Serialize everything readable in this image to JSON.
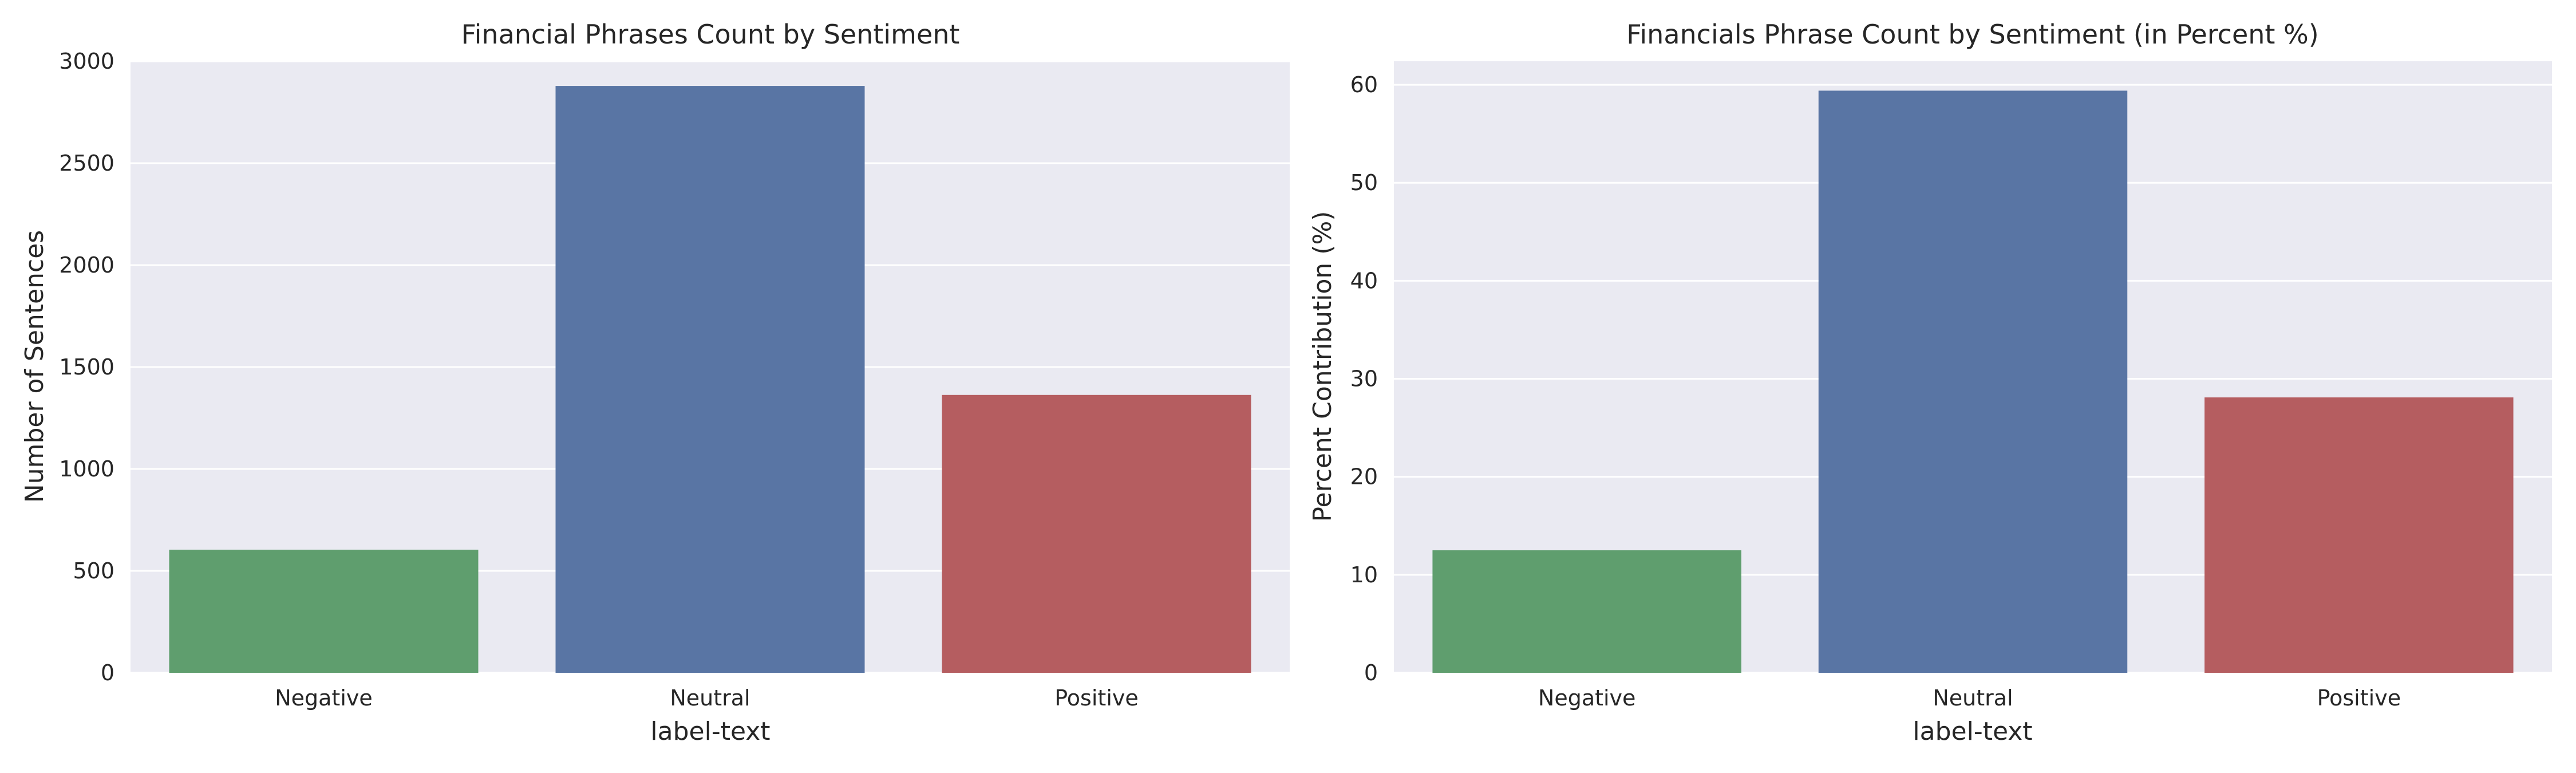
{
  "chart_data": [
    {
      "type": "bar",
      "title": "Financial Phrases Count by Sentiment",
      "xlabel": "label-text",
      "ylabel": "Number of Sentences",
      "categories": [
        "Negative",
        "Neutral",
        "Positive"
      ],
      "values": [
        604,
        2879,
        1363
      ],
      "colors": [
        "#5f9e6e",
        "#5975a4",
        "#b55d60"
      ],
      "ylim": [
        0,
        3000
      ],
      "yticks": [
        0,
        500,
        1000,
        1500,
        2000,
        2500,
        3000
      ],
      "ytick_labels": [
        "0",
        "500",
        "1000",
        "1500",
        "2000",
        "2500",
        "3000"
      ],
      "grid": true,
      "background": "#eaeaf2"
    },
    {
      "type": "bar",
      "title": "Financials Phrase Count by Sentiment (in Percent %)",
      "xlabel": "label-text",
      "ylabel": "Percent Contribution (%)",
      "categories": [
        "Negative",
        "Neutral",
        "Positive"
      ],
      "values": [
        12.5,
        59.4,
        28.1
      ],
      "colors": [
        "#5f9e6e",
        "#5975a4",
        "#b55d60"
      ],
      "ylim": [
        0,
        62.4
      ],
      "yticks": [
        0,
        10,
        20,
        30,
        40,
        50,
        60
      ],
      "ytick_labels": [
        "0",
        "10",
        "20",
        "30",
        "40",
        "50",
        "60"
      ],
      "grid": true,
      "background": "#eaeaf2"
    }
  ]
}
